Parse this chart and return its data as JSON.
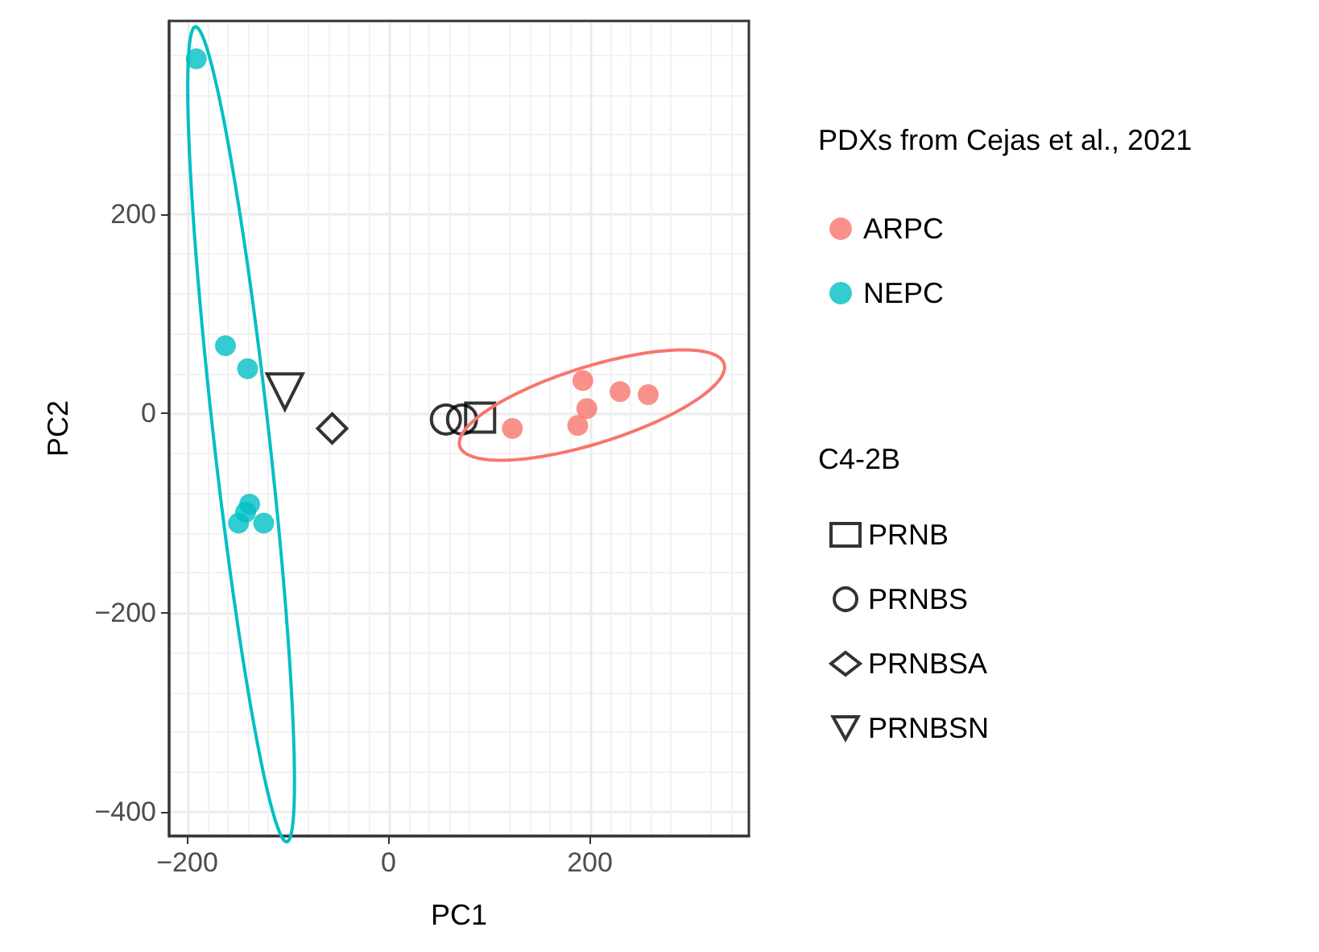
{
  "chart_data": {
    "type": "scatter",
    "xlabel": "PC1",
    "ylabel": "PC2",
    "legend_title": "PDXs from Cejas et al., 2021",
    "annotations": [
      "C4-2B"
    ],
    "xlim": [
      -218,
      358
    ],
    "xticks": [
      -200,
      0,
      200
    ],
    "ylim": [
      -424,
      394
    ],
    "yticks": [
      -400,
      -200,
      0,
      200
    ],
    "grid": true,
    "legend": "right",
    "series": [
      {
        "name": "ARPC",
        "color": "#f8766d",
        "marker": "circle",
        "x": [
          123,
          193,
          197,
          188,
          230,
          258
        ],
        "values": [
          -15,
          33,
          5,
          -12,
          22,
          19
        ]
      },
      {
        "name": "NEPC",
        "color": "#00bfc4",
        "marker": "circle",
        "x": [
          -191,
          -162,
          -140,
          -138,
          -142,
          -149,
          -124
        ],
        "values": [
          356,
          68,
          45,
          -91,
          -99,
          -110,
          -110
        ]
      },
      {
        "name": "PRNB",
        "color": "#000000",
        "marker": "square",
        "x": [
          91
        ],
        "values": [
          -4
        ]
      },
      {
        "name": "PRNBS",
        "color": "#000000",
        "marker": "circle",
        "x": [
          57,
          73
        ],
        "values": [
          -6,
          -6
        ]
      },
      {
        "name": "PRNBSA",
        "color": "#000000",
        "marker": "diamond",
        "x": [
          -56
        ],
        "values": [
          -15
        ]
      },
      {
        "name": "PRNBSN",
        "color": "#000000",
        "marker": "triangle",
        "x": [
          -103
        ],
        "values": [
          22
        ]
      }
    ]
  }
}
